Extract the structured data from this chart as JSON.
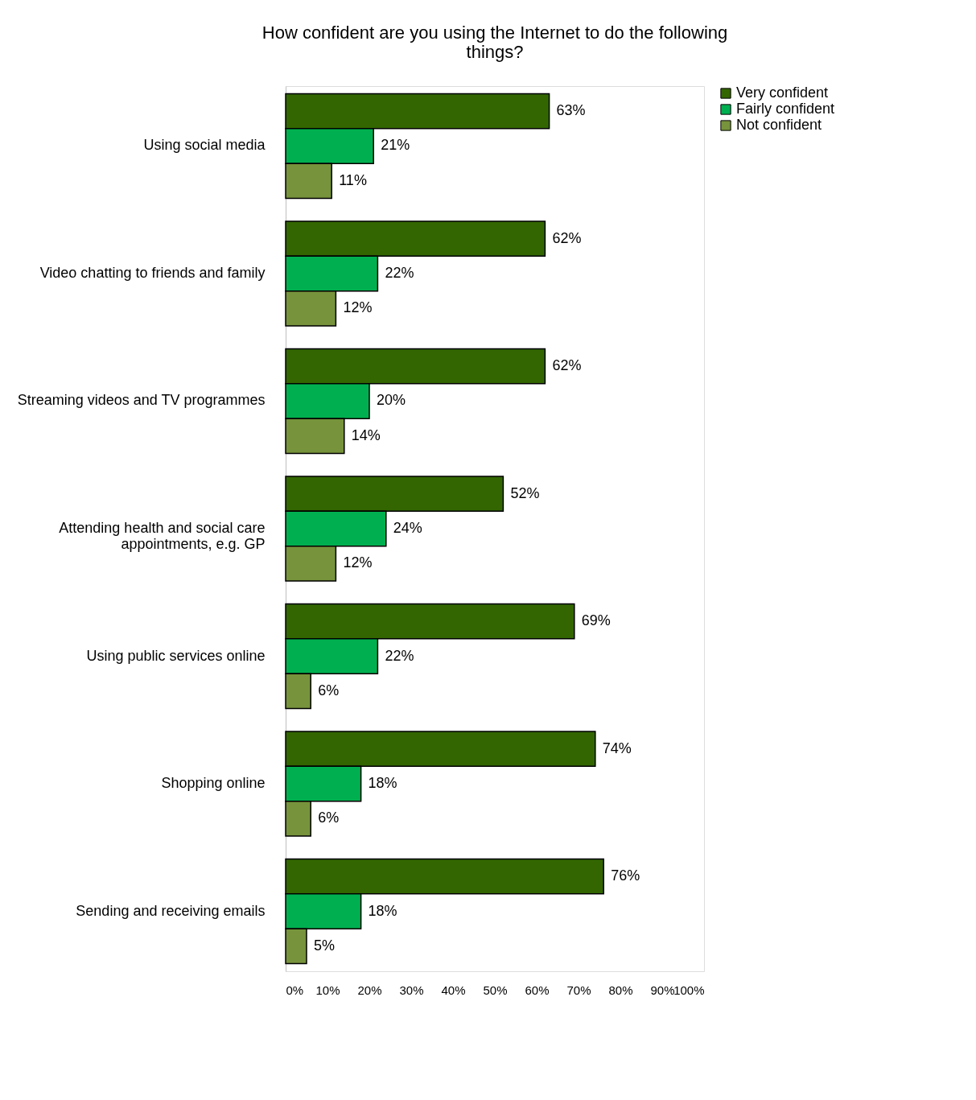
{
  "chart_data": {
    "type": "bar",
    "orientation": "horizontal",
    "title": "How confident are you using the Internet to do the following things?",
    "categories": [
      "Using social media",
      "Video chatting to friends and family",
      "Streaming videos and TV programmes",
      "Attending health and social care appointments, e.g. GP",
      "Using public services online",
      "Shopping online",
      "Sending and receiving emails"
    ],
    "series": [
      {
        "name": "Very confident",
        "color": "#336600",
        "values": [
          63,
          62,
          62,
          52,
          69,
          74,
          76
        ],
        "value_labels": [
          "63%",
          "62%",
          "62%",
          "52%",
          "69%",
          "74%",
          "76%"
        ]
      },
      {
        "name": "Fairly confident",
        "color": "#00b050",
        "values": [
          21,
          22,
          20,
          24,
          22,
          18,
          18
        ],
        "value_labels": [
          "21%",
          "22%",
          "20%",
          "24%",
          "22%",
          "18%",
          "18%"
        ]
      },
      {
        "name": "Not confident",
        "color": "#77933c",
        "values": [
          11,
          12,
          14,
          12,
          6,
          6,
          5
        ],
        "value_labels": [
          "11%",
          "12%",
          "14%",
          "12%",
          "6%",
          "6%",
          "5%"
        ]
      }
    ],
    "xlim": [
      0,
      100
    ],
    "xticks": [
      {
        "value": 0,
        "label": "0%"
      },
      {
        "value": 10,
        "label": "10%"
      },
      {
        "value": 20,
        "label": "20%"
      },
      {
        "value": 30,
        "label": "30%"
      },
      {
        "value": 40,
        "label": "40%"
      },
      {
        "value": 50,
        "label": "50%"
      },
      {
        "value": 60,
        "label": "60%"
      },
      {
        "value": 70,
        "label": "70%"
      },
      {
        "value": 80,
        "label": "80%"
      },
      {
        "value": 90,
        "label": "90%"
      },
      {
        "value": 100,
        "label": "100%"
      }
    ],
    "grid": false,
    "legend": "right"
  }
}
